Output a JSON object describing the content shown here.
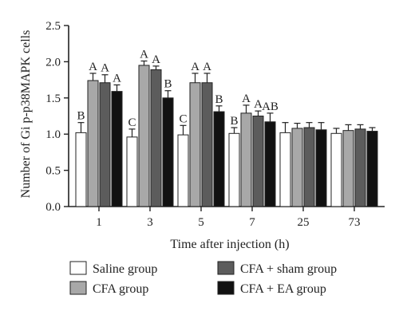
{
  "chart_data": {
    "type": "bar",
    "xlabel": "Time after injection (h)",
    "ylabel": "Number of Gi p-p38MAPK cells",
    "ylim": [
      0,
      2.5
    ],
    "yticks": [
      "0.0",
      "0.5",
      "1.0",
      "1.5",
      "2.0",
      "2.5"
    ],
    "categories": [
      "1",
      "3",
      "5",
      "7",
      "25",
      "73"
    ],
    "series": [
      {
        "name": "Saline group",
        "color": "#ffffff",
        "values": [
          1.02,
          0.96,
          0.99,
          1.01,
          1.02,
          1.01
        ],
        "errors": [
          0.14,
          0.11,
          0.13,
          0.08,
          0.14,
          0.07
        ],
        "labels": [
          "B",
          "C",
          "C",
          "B",
          "",
          ""
        ]
      },
      {
        "name": "CFA group",
        "color": "#a8a8a8",
        "values": [
          1.74,
          1.95,
          1.71,
          1.29,
          1.08,
          1.05
        ],
        "errors": [
          0.1,
          0.06,
          0.13,
          0.11,
          0.07,
          0.08
        ],
        "labels": [
          "A",
          "A",
          "A",
          "A",
          "",
          ""
        ]
      },
      {
        "name": "CFA + sham group",
        "color": "#5c5c5c",
        "values": [
          1.71,
          1.89,
          1.71,
          1.25,
          1.09,
          1.07
        ],
        "errors": [
          0.11,
          0.05,
          0.13,
          0.07,
          0.07,
          0.06
        ],
        "labels": [
          "A",
          "A",
          "A",
          "A",
          "",
          ""
        ]
      },
      {
        "name": "CFA + EA group",
        "color": "#111111",
        "values": [
          1.59,
          1.5,
          1.31,
          1.17,
          1.06,
          1.04
        ],
        "errors": [
          0.09,
          0.1,
          0.08,
          0.12,
          0.1,
          0.05
        ],
        "labels": [
          "A",
          "B",
          "B",
          "AB",
          "",
          ""
        ]
      }
    ],
    "legend": {
      "placement": "bottom",
      "columns": 2
    }
  }
}
